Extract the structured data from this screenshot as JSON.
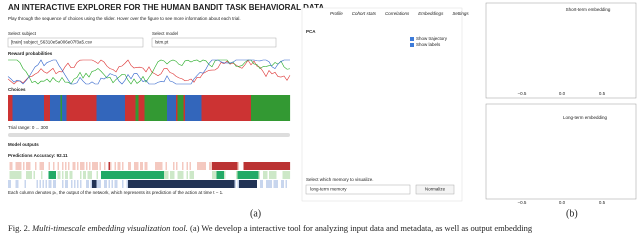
{
  "panel_a": {
    "title": "AN INTERACTIVE EXPLORER FOR THE HUMAN BANDIT TASK BEHAVIORAL DATA",
    "instructions": "Play through the sequence of choices using the slider. Hover over the figure to see more information about each trial.",
    "subject_label": "Select subject",
    "subject_value": "[train] subject_56310e5a006e07f3a5.csv",
    "model_label": "Select model",
    "model_value": "lstm.pt",
    "reward_label": "Reward probabilities",
    "choices_label": "Choices",
    "trial_range": "Trial range: 0 ... 300",
    "outputs_label": "Model outputs",
    "accuracy": "Predictions Accuracy: 92.11",
    "note": "Each column denotes pₜ, the output of the network, which represents its prediction of the action at time t − 1.",
    "tabs": [
      "Profile",
      "Cohort stats",
      "Correlations",
      "Embeddings",
      "Settings"
    ],
    "pca_label": "PCA",
    "checkboxes": [
      "Show trajectory",
      "Show labels"
    ],
    "memory_prompt": "Select which memory to visualize.",
    "memory_value": "long-term memory",
    "normalize_button": "Normalize",
    "label": "(a)"
  },
  "panel_b": {
    "top_title": "Short-term embedding",
    "top_ticks": [
      "−0.5",
      "0.0",
      "0.5"
    ],
    "bottom_title": "Long-term embedding",
    "bottom_ticks": [
      "−0.5",
      "0.0",
      "0.5"
    ],
    "label": "(b)"
  },
  "caption": {
    "prefix": "Fig. 2.",
    "title": "Multi-timescale embedding visualization tool.",
    "text": "(a) We develop a interactive tool for analyzing input data and metadata, as well as output embedding"
  }
}
